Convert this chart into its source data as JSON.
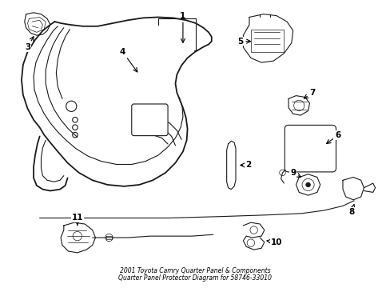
{
  "bg_color": "#ffffff",
  "line_color": "#1a1a1a",
  "title_line1": "2001 Toyota Camry Quarter Panel & Components",
  "title_line2": "Quarter Panel Protector Diagram for 58746-33010",
  "figwidth": 4.89,
  "figheight": 3.6,
  "dpi": 100
}
